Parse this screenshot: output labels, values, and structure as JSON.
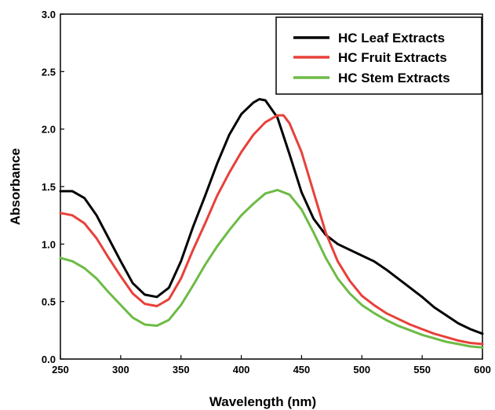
{
  "chart_data": {
    "type": "line",
    "xlabel": "Wavelength (nm)",
    "ylabel": "Absorbance",
    "xlim": [
      250,
      600
    ],
    "ylim": [
      0.0,
      3.0
    ],
    "xticks": [
      "250",
      "300",
      "350",
      "400",
      "450",
      "500",
      "550",
      "600"
    ],
    "yticks": [
      "0.0",
      "0.5",
      "1.0",
      "1.5",
      "2.0",
      "2.5",
      "3.0"
    ],
    "legend_position": "top-right",
    "grid": false,
    "series": [
      {
        "name": "HC Leaf Extracts",
        "color": "#000000",
        "points": [
          [
            250,
            1.46
          ],
          [
            260,
            1.46
          ],
          [
            270,
            1.4
          ],
          [
            280,
            1.25
          ],
          [
            290,
            1.05
          ],
          [
            300,
            0.85
          ],
          [
            310,
            0.66
          ],
          [
            320,
            0.56
          ],
          [
            330,
            0.54
          ],
          [
            340,
            0.62
          ],
          [
            350,
            0.85
          ],
          [
            360,
            1.15
          ],
          [
            370,
            1.42
          ],
          [
            380,
            1.7
          ],
          [
            390,
            1.95
          ],
          [
            400,
            2.13
          ],
          [
            410,
            2.23
          ],
          [
            415,
            2.26
          ],
          [
            420,
            2.25
          ],
          [
            430,
            2.1
          ],
          [
            440,
            1.78
          ],
          [
            450,
            1.45
          ],
          [
            460,
            1.22
          ],
          [
            470,
            1.08
          ],
          [
            480,
            1.0
          ],
          [
            490,
            0.95
          ],
          [
            500,
            0.9
          ],
          [
            510,
            0.85
          ],
          [
            520,
            0.78
          ],
          [
            530,
            0.7
          ],
          [
            540,
            0.62
          ],
          [
            550,
            0.54
          ],
          [
            560,
            0.45
          ],
          [
            570,
            0.38
          ],
          [
            580,
            0.31
          ],
          [
            590,
            0.26
          ],
          [
            600,
            0.22
          ]
        ]
      },
      {
        "name": "HC Fruit Extracts",
        "color": "#e8403a",
        "points": [
          [
            250,
            1.27
          ],
          [
            260,
            1.25
          ],
          [
            270,
            1.18
          ],
          [
            280,
            1.05
          ],
          [
            290,
            0.88
          ],
          [
            300,
            0.72
          ],
          [
            310,
            0.57
          ],
          [
            320,
            0.48
          ],
          [
            330,
            0.46
          ],
          [
            340,
            0.52
          ],
          [
            350,
            0.7
          ],
          [
            360,
            0.95
          ],
          [
            370,
            1.18
          ],
          [
            380,
            1.42
          ],
          [
            390,
            1.62
          ],
          [
            400,
            1.8
          ],
          [
            410,
            1.95
          ],
          [
            420,
            2.06
          ],
          [
            430,
            2.12
          ],
          [
            435,
            2.12
          ],
          [
            440,
            2.05
          ],
          [
            450,
            1.8
          ],
          [
            460,
            1.45
          ],
          [
            470,
            1.1
          ],
          [
            480,
            0.85
          ],
          [
            490,
            0.68
          ],
          [
            500,
            0.55
          ],
          [
            510,
            0.47
          ],
          [
            520,
            0.4
          ],
          [
            530,
            0.35
          ],
          [
            540,
            0.3
          ],
          [
            550,
            0.26
          ],
          [
            560,
            0.22
          ],
          [
            570,
            0.19
          ],
          [
            580,
            0.16
          ],
          [
            590,
            0.14
          ],
          [
            600,
            0.13
          ]
        ]
      },
      {
        "name": "HC Stem Extracts",
        "color": "#6dbb45",
        "points": [
          [
            250,
            0.88
          ],
          [
            260,
            0.85
          ],
          [
            270,
            0.79
          ],
          [
            280,
            0.7
          ],
          [
            290,
            0.58
          ],
          [
            300,
            0.47
          ],
          [
            310,
            0.36
          ],
          [
            320,
            0.3
          ],
          [
            330,
            0.29
          ],
          [
            340,
            0.34
          ],
          [
            350,
            0.47
          ],
          [
            360,
            0.64
          ],
          [
            370,
            0.82
          ],
          [
            380,
            0.98
          ],
          [
            390,
            1.12
          ],
          [
            400,
            1.25
          ],
          [
            410,
            1.35
          ],
          [
            420,
            1.44
          ],
          [
            430,
            1.47
          ],
          [
            440,
            1.43
          ],
          [
            450,
            1.3
          ],
          [
            460,
            1.1
          ],
          [
            470,
            0.88
          ],
          [
            480,
            0.7
          ],
          [
            490,
            0.57
          ],
          [
            500,
            0.47
          ],
          [
            510,
            0.4
          ],
          [
            520,
            0.34
          ],
          [
            530,
            0.29
          ],
          [
            540,
            0.25
          ],
          [
            550,
            0.21
          ],
          [
            560,
            0.18
          ],
          [
            570,
            0.15
          ],
          [
            580,
            0.13
          ],
          [
            590,
            0.11
          ],
          [
            600,
            0.1
          ]
        ]
      }
    ]
  }
}
